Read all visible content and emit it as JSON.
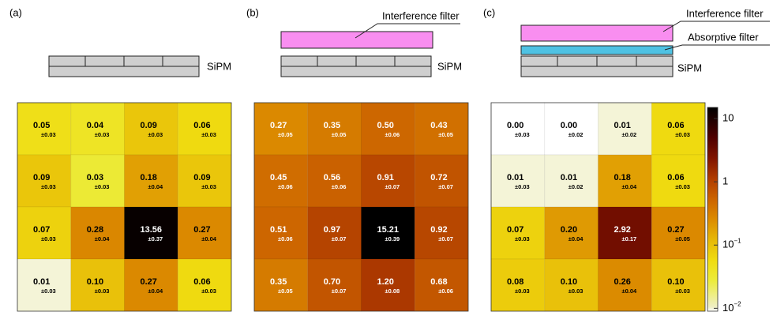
{
  "chart_data": [
    {
      "type": "heatmap",
      "panel_label": "(a)",
      "diagram_labels": {
        "sipm": "SiPM"
      },
      "values": [
        [
          0.05,
          0.04,
          0.09,
          0.06
        ],
        [
          0.09,
          0.03,
          0.18,
          0.09
        ],
        [
          0.07,
          0.28,
          13.56,
          0.27
        ],
        [
          0.01,
          0.1,
          0.27,
          0.06
        ]
      ],
      "value_labels": [
        [
          "0.05",
          "0.04",
          "0.09",
          "0.06"
        ],
        [
          "0.09",
          "0.03",
          "0.18",
          "0.09"
        ],
        [
          "0.07",
          "0.28",
          "13.56",
          "0.27"
        ],
        [
          "0.01",
          "0.10",
          "0.27",
          "0.06"
        ]
      ],
      "errors": [
        [
          0.03,
          0.03,
          0.03,
          0.03
        ],
        [
          0.03,
          0.03,
          0.04,
          0.03
        ],
        [
          0.03,
          0.04,
          0.37,
          0.04
        ],
        [
          0.03,
          0.03,
          0.04,
          0.03
        ]
      ],
      "error_labels": [
        [
          "±0.03",
          "±0.03",
          "±0.03",
          "±0.03"
        ],
        [
          "±0.03",
          "±0.03",
          "±0.04",
          "±0.03"
        ],
        [
          "±0.03",
          "±0.04",
          "±0.37",
          "±0.04"
        ],
        [
          "±0.03",
          "±0.03",
          "±0.04",
          "±0.03"
        ]
      ]
    },
    {
      "type": "heatmap",
      "panel_label": "(b)",
      "diagram_labels": {
        "interference": "Interference filter",
        "sipm": "SiPM"
      },
      "label_color": "#ffffff",
      "values": [
        [
          0.27,
          0.35,
          0.5,
          0.43
        ],
        [
          0.45,
          0.56,
          0.91,
          0.72
        ],
        [
          0.51,
          0.97,
          15.21,
          0.92
        ],
        [
          0.35,
          0.7,
          1.2,
          0.68
        ]
      ],
      "value_labels": [
        [
          "0.27",
          "0.35",
          "0.50",
          "0.43"
        ],
        [
          "0.45",
          "0.56",
          "0.91",
          "0.72"
        ],
        [
          "0.51",
          "0.97",
          "15.21",
          "0.92"
        ],
        [
          "0.35",
          "0.70",
          "1.20",
          "0.68"
        ]
      ],
      "errors": [
        [
          0.05,
          0.05,
          0.06,
          0.05
        ],
        [
          0.06,
          0.06,
          0.07,
          0.07
        ],
        [
          0.06,
          0.07,
          0.39,
          0.07
        ],
        [
          0.05,
          0.07,
          0.08,
          0.06
        ]
      ],
      "error_labels": [
        [
          "±0.05",
          "±0.05",
          "±0.06",
          "±0.05"
        ],
        [
          "±0.06",
          "±0.06",
          "±0.07",
          "±0.07"
        ],
        [
          "±0.06",
          "±0.07",
          "±0.39",
          "±0.07"
        ],
        [
          "±0.05",
          "±0.07",
          "±0.08",
          "±0.06"
        ]
      ]
    },
    {
      "type": "heatmap",
      "panel_label": "(c)",
      "diagram_labels": {
        "interference": "Interference filter",
        "absorptive": "Absorptive filter",
        "sipm": "SiPM"
      },
      "values": [
        [
          0.0,
          0.0,
          0.01,
          0.06
        ],
        [
          0.01,
          0.01,
          0.18,
          0.06
        ],
        [
          0.07,
          0.2,
          2.92,
          0.27
        ],
        [
          0.08,
          0.1,
          0.26,
          0.1
        ]
      ],
      "value_labels": [
        [
          "0.00",
          "0.00",
          "0.01",
          "0.06"
        ],
        [
          "0.01",
          "0.01",
          "0.18",
          "0.06"
        ],
        [
          "0.07",
          "0.20",
          "2.92",
          "0.27"
        ],
        [
          "0.08",
          "0.10",
          "0.26",
          "0.10"
        ]
      ],
      "errors": [
        [
          0.03,
          0.02,
          0.02,
          0.03
        ],
        [
          0.03,
          0.02,
          0.04,
          0.03
        ],
        [
          0.03,
          0.04,
          0.17,
          0.05
        ],
        [
          0.03,
          0.03,
          0.04,
          0.03
        ]
      ],
      "error_labels": [
        [
          "±0.03",
          "±0.02",
          "±0.02",
          "±0.03"
        ],
        [
          "±0.03",
          "±0.02",
          "±0.04",
          "±0.03"
        ],
        [
          "±0.03",
          "±0.04",
          "±0.17",
          "±0.05"
        ],
        [
          "±0.03",
          "±0.03",
          "±0.04",
          "±0.03"
        ]
      ]
    }
  ],
  "color_scale": {
    "log": true,
    "zlim": [
      0.009,
      15
    ],
    "ticks": [
      10,
      1,
      {
        "value": 0.1,
        "label": "10",
        "exponent": "−1"
      },
      {
        "value": 0.01,
        "label": "10",
        "exponent": "−2"
      }
    ],
    "colormap": [
      [
        0,
        "#ffffff"
      ],
      [
        0.02,
        "#efefc6"
      ],
      [
        0.15,
        "#ecec3a"
      ],
      [
        0.25,
        "#f0dc10"
      ],
      [
        0.35,
        "#e6b808"
      ],
      [
        0.45,
        "#dc8c00"
      ],
      [
        0.55,
        "#cc6400"
      ],
      [
        0.65,
        "#b03c00"
      ],
      [
        0.75,
        "#801400"
      ],
      [
        0.85,
        "#500000"
      ],
      [
        1,
        "#000000"
      ]
    ]
  }
}
